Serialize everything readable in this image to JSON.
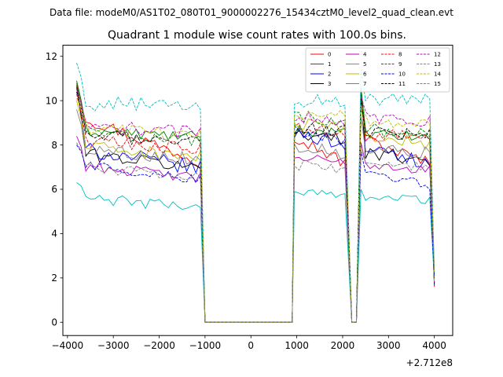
{
  "figure": {
    "supertitle": "Data file: modeM0/AS1T02_080T01_9000002276_15434cztM0_level2_quad_clean.evt",
    "title": "Quadrant 1 module wise count rates with 100.0s bins.",
    "offset_label": "+2.712e8"
  },
  "chart_data": {
    "type": "line",
    "title": "Quadrant 1 module wise count rates with 100.0s bins.",
    "xlabel": "",
    "ylabel": "",
    "x_offset": "+2.712e8",
    "xlim": [
      -4100,
      4400
    ],
    "ylim": [
      -0.6,
      12.5
    ],
    "xticks": [
      -4000,
      -3000,
      -2000,
      -1000,
      0,
      1000,
      2000,
      3000,
      4000
    ],
    "xtick_labels": [
      "−4000",
      "−3000",
      "−2000",
      "−1000",
      "0",
      "1000",
      "2000",
      "3000",
      "4000"
    ],
    "yticks": [
      0,
      2,
      4,
      6,
      8,
      10,
      12
    ],
    "ytick_labels": [
      "0",
      "2",
      "4",
      "6",
      "8",
      "10",
      "12"
    ],
    "grid": false,
    "legend_position": "top-right",
    "legend_columns": 4,
    "segments": [
      {
        "start": -3800,
        "end": -1100
      },
      {
        "start": -1000,
        "end": 900
      },
      {
        "start": 950,
        "end": 2050
      },
      {
        "start": 2200,
        "end": 2300
      },
      {
        "start": 2400,
        "end": 4000
      }
    ],
    "series": [
      {
        "name": "0",
        "color": "#ff0000",
        "dash": "solid",
        "levels": [
          8.3,
          0,
          7.8,
          0,
          7.7
        ],
        "peak": 10.8,
        "trend": -2.1,
        "fluct": 0.3
      },
      {
        "name": "1",
        "color": "#008000",
        "dash": "solid",
        "levels": [
          8.5,
          0,
          8.6,
          0,
          8.4
        ],
        "peak": 10.9,
        "trend": -0.3,
        "fluct": 0.25
      },
      {
        "name": "2",
        "color": "#0000ff",
        "dash": "solid",
        "levels": [
          7.4,
          0,
          8.3,
          0,
          7.5
        ],
        "peak": 10.6,
        "trend": -0.9,
        "fluct": 0.35
      },
      {
        "name": "3",
        "color": "#000000",
        "dash": "solid",
        "levels": [
          7.3,
          0,
          8.4,
          0,
          7.5
        ],
        "peak": 10.7,
        "trend": -0.7,
        "fluct": 0.3
      },
      {
        "name": "4",
        "color": "#bf00bf",
        "dash": "solid",
        "levels": [
          6.8,
          0,
          7.3,
          0,
          7.0
        ],
        "peak": 8.4,
        "trend": -0.6,
        "fluct": 0.25
      },
      {
        "name": "5",
        "color": "#00bfbf",
        "dash": "solid",
        "levels": [
          5.4,
          0,
          5.8,
          0,
          5.6
        ],
        "peak": 6.3,
        "trend": -0.4,
        "fluct": 0.25
      },
      {
        "name": "6",
        "color": "#bfbf00",
        "dash": "solid",
        "levels": [
          7.7,
          0,
          8.8,
          0,
          8.2
        ],
        "peak": 10.0,
        "trend": -0.5,
        "fluct": 0.3
      },
      {
        "name": "7",
        "color": "#808080",
        "dash": "solid",
        "levels": [
          7.6,
          0,
          7.8,
          0,
          7.8
        ],
        "peak": 9.6,
        "trend": -0.5,
        "fluct": 0.3
      },
      {
        "name": "8",
        "color": "#ff0000",
        "dash": "dashed",
        "levels": [
          8.0,
          0,
          8.6,
          0,
          8.4
        ],
        "peak": 10.3,
        "trend": -0.4,
        "fluct": 0.3
      },
      {
        "name": "9",
        "color": "#008000",
        "dash": "dashed",
        "levels": [
          8.4,
          0,
          9.2,
          0,
          8.6
        ],
        "peak": 10.7,
        "trend": -0.3,
        "fluct": 0.3
      },
      {
        "name": "10",
        "color": "#0000ff",
        "dash": "dashed",
        "levels": [
          6.8,
          0,
          8.4,
          0,
          6.4
        ],
        "peak": 8.0,
        "trend": -0.8,
        "fluct": 0.25
      },
      {
        "name": "11",
        "color": "#000000",
        "dash": "dashed",
        "levels": [
          8.3,
          0,
          8.7,
          0,
          8.5
        ],
        "peak": 10.4,
        "trend": -0.2,
        "fluct": 0.3
      },
      {
        "name": "12",
        "color": "#bf00bf",
        "dash": "dashed",
        "levels": [
          8.7,
          0,
          9.2,
          0,
          9.2
        ],
        "peak": 10.5,
        "trend": -0.3,
        "fluct": 0.3
      },
      {
        "name": "13",
        "color": "#00bfbf",
        "dash": "dashed",
        "levels": [
          9.8,
          0,
          10.0,
          0,
          10.0
        ],
        "peak": 11.7,
        "trend": -0.2,
        "fluct": 0.35
      },
      {
        "name": "14",
        "color": "#bfbf00",
        "dash": "dashed",
        "levels": [
          8.6,
          0,
          9.4,
          0,
          9.0
        ],
        "peak": 10.1,
        "trend": -0.3,
        "fluct": 0.3
      },
      {
        "name": "15",
        "color": "#808080",
        "dash": "dashed",
        "levels": [
          6.8,
          0,
          7.0,
          0,
          7.1
        ],
        "peak": 8.1,
        "trend": -0.4,
        "fluct": 0.25
      }
    ]
  }
}
